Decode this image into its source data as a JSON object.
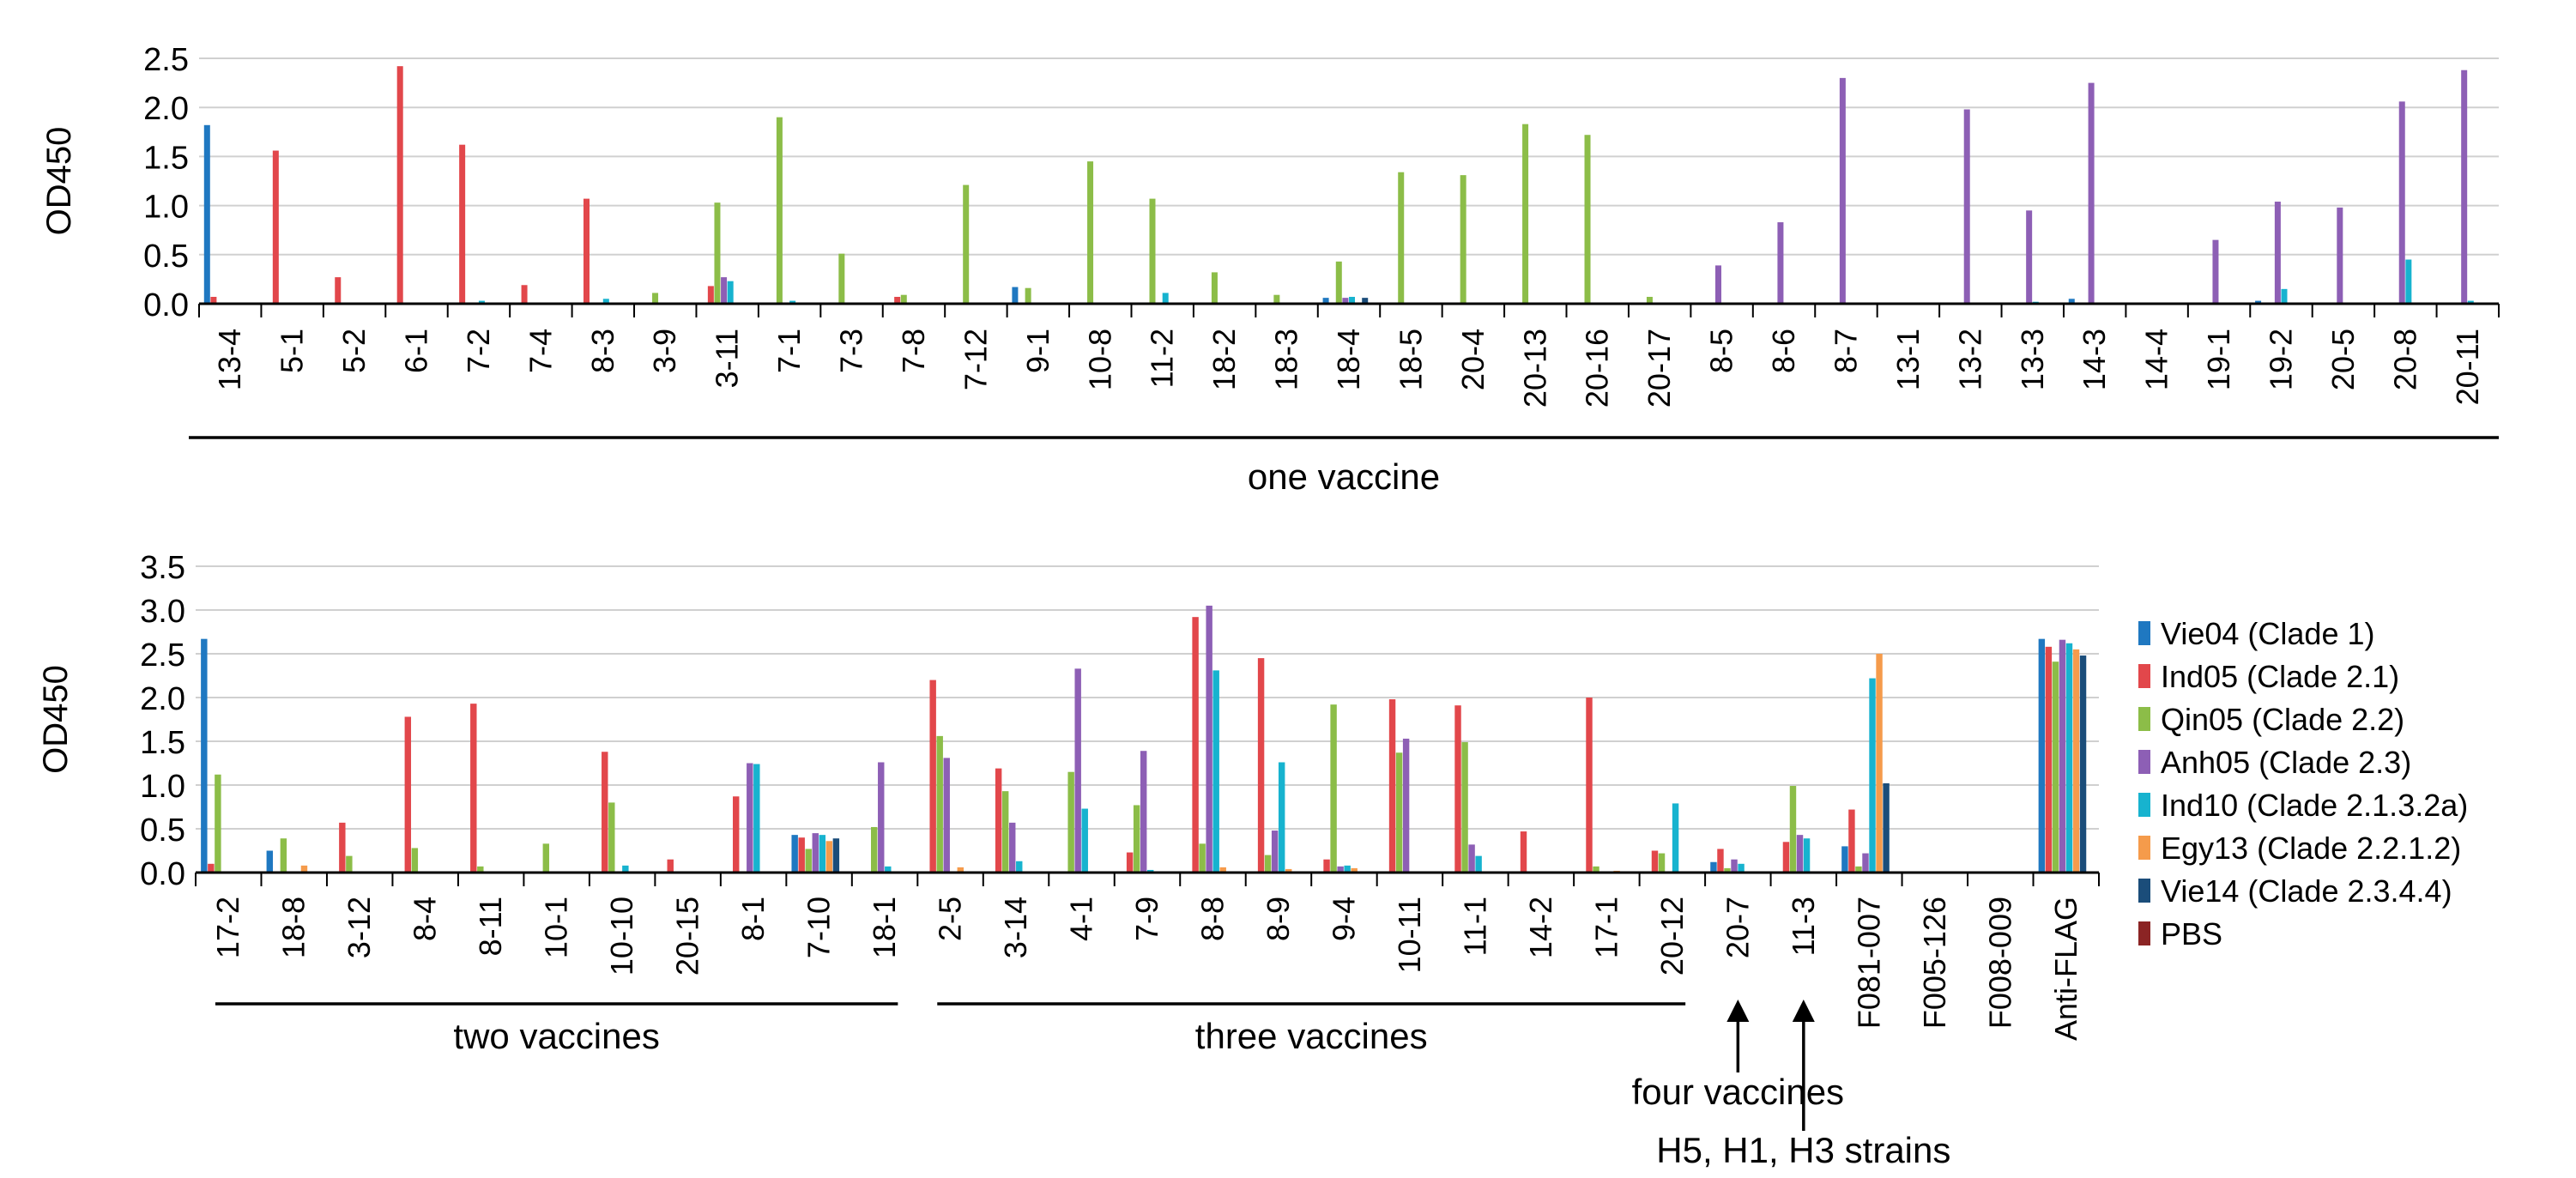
{
  "colors": {
    "Vie04": "#1f78c1",
    "Ind05": "#e2474b",
    "Qin05": "#8cbd48",
    "Anh05": "#8d5fb5",
    "Ind10": "#17b3cf",
    "Egy13": "#f59b4b",
    "Vie14": "#1b4d7a",
    "PBS": "#8b2424",
    "grid": "#d0d0d0",
    "axis": "#000000"
  },
  "legend": {
    "entries": [
      {
        "key": "Vie04",
        "label": "Vie04 (Clade 1)"
      },
      {
        "key": "Ind05",
        "label": "Ind05 (Clade 2.1)"
      },
      {
        "key": "Qin05",
        "label": "Qin05 (Clade 2.2)"
      },
      {
        "key": "Anh05",
        "label": "Anh05 (Clade 2.3)"
      },
      {
        "key": "Ind10",
        "label": "Ind10 (Clade 2.1.3.2a)"
      },
      {
        "key": "Egy13",
        "label": "Egy13 (Clade 2.2.1.2)"
      },
      {
        "key": "Vie14",
        "label": "Vie14 (Clade 2.3.4.4)"
      },
      {
        "key": "PBS",
        "label": "PBS"
      }
    ],
    "placement": "right of bottom panel"
  },
  "chart_data": [
    {
      "type": "bar",
      "ylabel": "OD450",
      "ylim": [
        0,
        2.5
      ],
      "yticks": [
        "0.0",
        "0.5",
        "1.0",
        "1.5",
        "2.0",
        "2.5"
      ],
      "grid": true,
      "series_order": [
        "Vie04",
        "Ind05",
        "Qin05",
        "Anh05",
        "Ind10",
        "Egy13",
        "Vie14",
        "PBS"
      ],
      "categories": [
        "13-4",
        "5-1",
        "5-2",
        "6-1",
        "7-2",
        "7-4",
        "8-3",
        "3-9",
        "3-11",
        "7-1",
        "7-3",
        "7-8",
        "7-12",
        "9-1",
        "10-8",
        "11-2",
        "18-2",
        "18-3",
        "18-4",
        "18-5",
        "20-4",
        "20-13",
        "20-16",
        "20-17",
        "8-5",
        "8-6",
        "8-7",
        "13-1",
        "13-2",
        "13-3",
        "14-3",
        "14-4",
        "19-1",
        "19-2",
        "20-5",
        "20-8",
        "20-11"
      ],
      "bars": [
        [
          1.82,
          0.07,
          0,
          0,
          0,
          0,
          0,
          0
        ],
        [
          0,
          1.56,
          0,
          0,
          0,
          0,
          0,
          0
        ],
        [
          0,
          0.27,
          0,
          0,
          0,
          0,
          0,
          0
        ],
        [
          0,
          2.42,
          0,
          0,
          0,
          0,
          0,
          0
        ],
        [
          0,
          1.62,
          0,
          0,
          0.03,
          0,
          0,
          0
        ],
        [
          0,
          0.19,
          0,
          0,
          0,
          0,
          0,
          0
        ],
        [
          0,
          1.07,
          0,
          0,
          0.05,
          0,
          0,
          0
        ],
        [
          0,
          0,
          0.11,
          0,
          0,
          0,
          0,
          0
        ],
        [
          0,
          0.18,
          1.03,
          0.27,
          0.23,
          0,
          0,
          0
        ],
        [
          0,
          0,
          1.9,
          0,
          0.03,
          0,
          0,
          0
        ],
        [
          0,
          0,
          0.51,
          0,
          0,
          0,
          0,
          0
        ],
        [
          0,
          0.07,
          0.09,
          0,
          0,
          0,
          0,
          0
        ],
        [
          0,
          0,
          1.21,
          0,
          0,
          0,
          0,
          0
        ],
        [
          0.17,
          0,
          0.16,
          0,
          0,
          0,
          0,
          0
        ],
        [
          0,
          0,
          1.45,
          0,
          0,
          0,
          0,
          0
        ],
        [
          0,
          0,
          1.07,
          0,
          0.11,
          0,
          0,
          0
        ],
        [
          0,
          0,
          0.32,
          0,
          0,
          0,
          0,
          0
        ],
        [
          0,
          0,
          0.09,
          0,
          0,
          0,
          0,
          0
        ],
        [
          0.06,
          0,
          0.43,
          0.06,
          0.07,
          0,
          0.06,
          0
        ],
        [
          0,
          0,
          1.34,
          0,
          0,
          0,
          0,
          0
        ],
        [
          0,
          0,
          1.31,
          0,
          0,
          0,
          0,
          0
        ],
        [
          0,
          0,
          1.83,
          0,
          0,
          0,
          0,
          0
        ],
        [
          0,
          0,
          1.72,
          0,
          0,
          0,
          0,
          0
        ],
        [
          0,
          0,
          0.07,
          0,
          0,
          0,
          0,
          0
        ],
        [
          0,
          0,
          0,
          0.39,
          0,
          0,
          0,
          0
        ],
        [
          0,
          0,
          0,
          0.83,
          0,
          0,
          0,
          0
        ],
        [
          0,
          0,
          0,
          2.3,
          0,
          0,
          0,
          0
        ],
        [
          0,
          0,
          0,
          0,
          0,
          0,
          0,
          0
        ],
        [
          0,
          0,
          0,
          1.98,
          0,
          0,
          0,
          0
        ],
        [
          0,
          0,
          0,
          0.95,
          0.02,
          0,
          0,
          0
        ],
        [
          0.05,
          0,
          0,
          2.25,
          0,
          0,
          0,
          0
        ],
        [
          0,
          0,
          0,
          0,
          0,
          0,
          0,
          0
        ],
        [
          0,
          0,
          0,
          0.65,
          0,
          0,
          0,
          0
        ],
        [
          0.03,
          0,
          0,
          1.04,
          0.15,
          0,
          0,
          0
        ],
        [
          0,
          0,
          0,
          0.98,
          0,
          0,
          0,
          0
        ],
        [
          0,
          0,
          0,
          2.06,
          0.45,
          0,
          0,
          0
        ],
        [
          0,
          0,
          0,
          2.38,
          0.03,
          0,
          0,
          0
        ]
      ],
      "groups": [
        {
          "label": "one vaccine",
          "from": "13-4",
          "to": "20-11"
        }
      ]
    },
    {
      "type": "bar",
      "ylabel": "OD450",
      "ylim": [
        0,
        3.5
      ],
      "yticks": [
        "0.0",
        "0.5",
        "1.0",
        "1.5",
        "2.0",
        "2.5",
        "3.0",
        "3.5"
      ],
      "grid": true,
      "series_order": [
        "Vie04",
        "Ind05",
        "Qin05",
        "Anh05",
        "Ind10",
        "Egy13",
        "Vie14",
        "PBS"
      ],
      "categories": [
        "17-2",
        "18-8",
        "3-12",
        "8-4",
        "8-11",
        "10-1",
        "10-10",
        "20-15",
        "8-1",
        "7-10",
        "18-1",
        "2-5",
        "3-14",
        "4-1",
        "7-9",
        "8-8",
        "8-9",
        "9-4",
        "10-11",
        "11-1",
        "14-2",
        "17-1",
        "20-12",
        "20-7",
        "11-3",
        "F081-007",
        "F005-126",
        "F008-009",
        "Anti-FLAG"
      ],
      "bars": [
        [
          2.67,
          0.1,
          1.12,
          0,
          0,
          0,
          0,
          0
        ],
        [
          0.25,
          0,
          0.39,
          0,
          0,
          0.08,
          0,
          0
        ],
        [
          0,
          0.57,
          0.19,
          0,
          0,
          0,
          0,
          0
        ],
        [
          0,
          1.78,
          0.28,
          0,
          0,
          0,
          0,
          0
        ],
        [
          0,
          1.93,
          0.07,
          0,
          0,
          0,
          0,
          0
        ],
        [
          0,
          0,
          0.33,
          0,
          0,
          0,
          0,
          0
        ],
        [
          0,
          1.38,
          0.8,
          0,
          0.08,
          0,
          0,
          0
        ],
        [
          0,
          0.15,
          0,
          0,
          0,
          0,
          0,
          0
        ],
        [
          0,
          0.87,
          0,
          1.25,
          1.24,
          0,
          0,
          0
        ],
        [
          0.43,
          0.4,
          0.27,
          0.45,
          0.43,
          0.36,
          0.39,
          0
        ],
        [
          0,
          0,
          0.52,
          1.26,
          0.07,
          0,
          0,
          0
        ],
        [
          0,
          2.2,
          1.56,
          1.31,
          0,
          0.06,
          0,
          0
        ],
        [
          0,
          1.19,
          0.93,
          0.57,
          0.13,
          0,
          0,
          0
        ],
        [
          0,
          0,
          1.15,
          2.33,
          0.73,
          0,
          0,
          0
        ],
        [
          0,
          0.23,
          0.77,
          1.39,
          0.03,
          0,
          0,
          0
        ],
        [
          0,
          2.92,
          0.33,
          3.05,
          2.31,
          0.06,
          0,
          0
        ],
        [
          0,
          2.45,
          0.2,
          0.48,
          1.26,
          0.04,
          0,
          0
        ],
        [
          0,
          0.15,
          1.92,
          0.07,
          0.08,
          0.05,
          0,
          0
        ],
        [
          0,
          1.98,
          1.37,
          1.53,
          0,
          0,
          0,
          0
        ],
        [
          0,
          1.91,
          1.49,
          0.32,
          0.19,
          0,
          0,
          0
        ],
        [
          0,
          0.47,
          0,
          0,
          0,
          0,
          0,
          0
        ],
        [
          0,
          2.0,
          0.07,
          0,
          0,
          0.02,
          0,
          0
        ],
        [
          0,
          0.25,
          0.22,
          0,
          0.79,
          0,
          0,
          0
        ],
        [
          0.12,
          0.27,
          0.05,
          0.15,
          0.1,
          0,
          0,
          0
        ],
        [
          0,
          0.35,
          0.99,
          0.43,
          0.39,
          0,
          0,
          0
        ],
        [
          0.3,
          0.72,
          0.07,
          0.22,
          2.22,
          2.5,
          1.02,
          0
        ],
        [
          0,
          0,
          0,
          0,
          0,
          0,
          0,
          0
        ],
        [
          0,
          0,
          0,
          0,
          0,
          0,
          0,
          0
        ],
        [
          2.67,
          2.58,
          2.41,
          2.66,
          2.62,
          2.55,
          2.48,
          0
        ]
      ],
      "groups": [
        {
          "label": "two vaccines",
          "from": "17-2",
          "to": "18-1"
        },
        {
          "label": "three vaccines",
          "from": "2-5",
          "to": "20-12"
        }
      ],
      "annotations": [
        {
          "label": "four vaccines",
          "points_to": "20-7"
        },
        {
          "label": "H5, H1, H3 strains",
          "points_to": "11-3"
        }
      ]
    }
  ]
}
